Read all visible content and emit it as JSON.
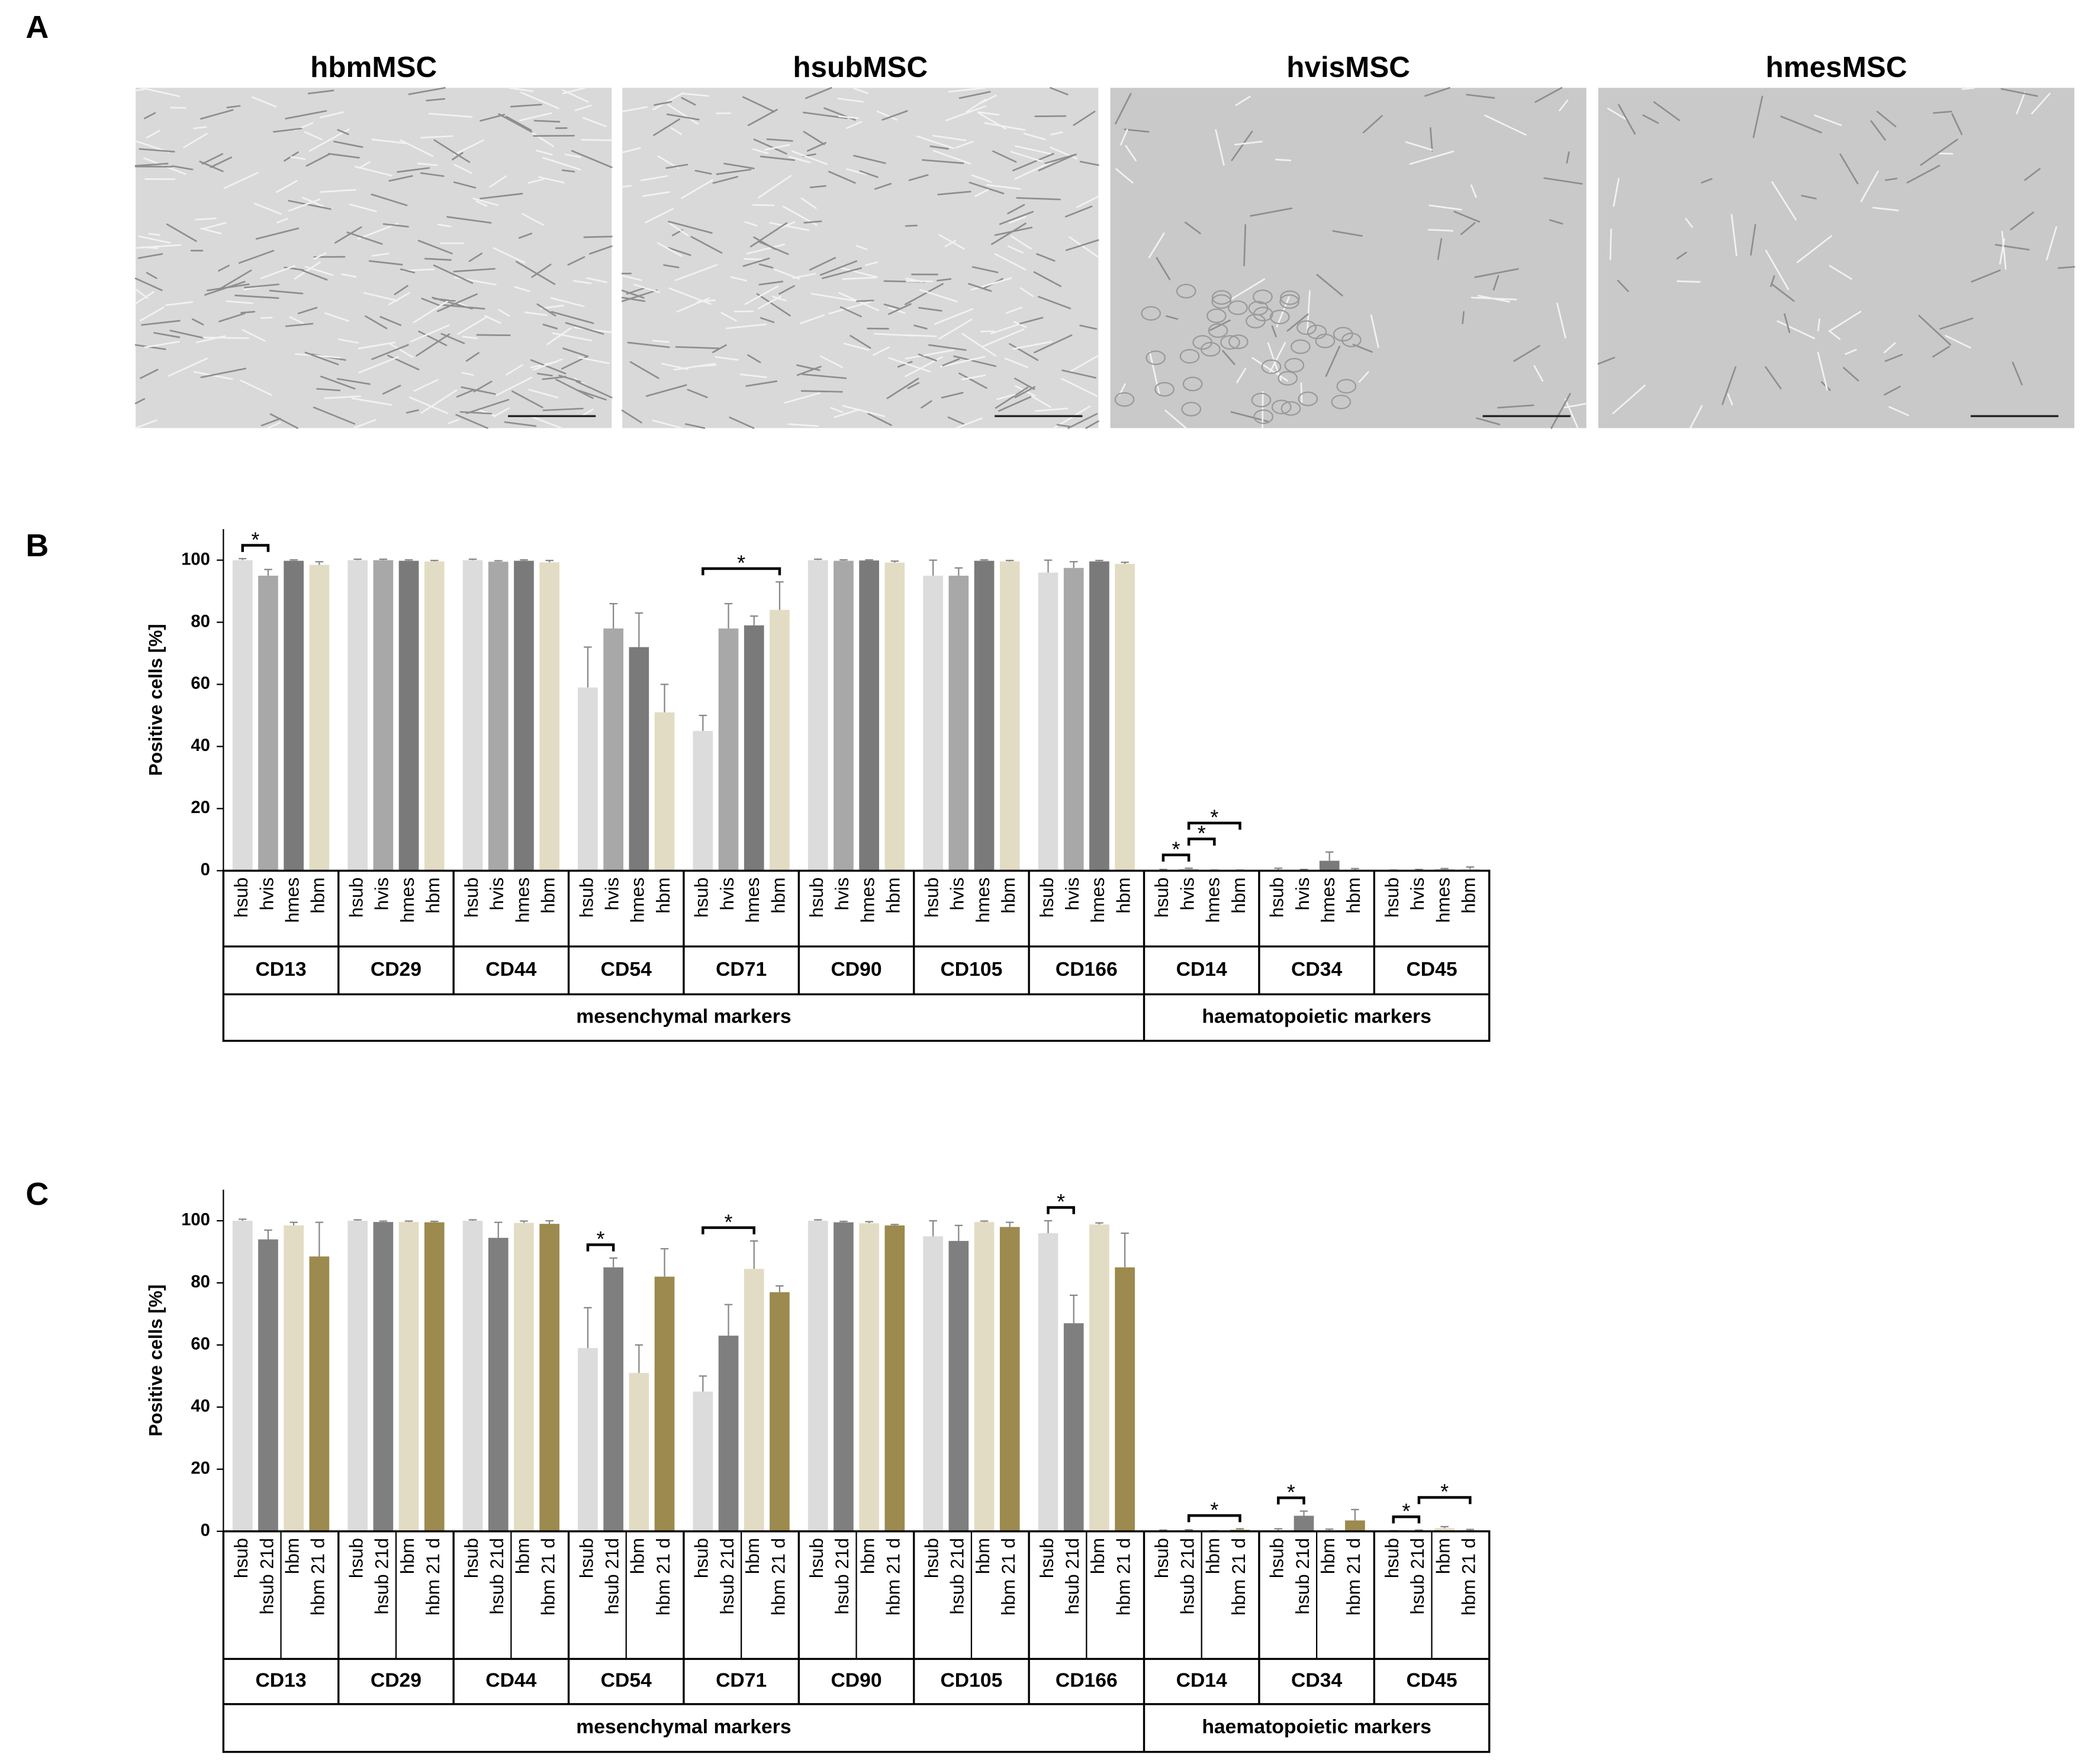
{
  "panel_labels": [
    "A",
    "B",
    "C"
  ],
  "images": [
    "hbmMSC",
    "hsubMSC",
    "hvisMSC",
    "hmesMSC"
  ],
  "chart_data": [
    {
      "type": "bar",
      "y_label": "Positive cells [%]",
      "categories": [
        "CD13",
        "CD29",
        "CD44",
        "CD54",
        "CD71",
        "CD90",
        "CD105",
        "CD166",
        "CD14",
        "CD34",
        "CD45"
      ],
      "groups": [
        {
          "label": "mesenchymal markers",
          "from": "CD13",
          "to": "CD166"
        },
        {
          "label": "haematopoietic markers",
          "from": "CD14",
          "to": "CD45"
        }
      ],
      "ylim": [
        0,
        110
      ],
      "yticks": [
        0,
        20,
        40,
        60,
        80,
        100
      ],
      "series": [
        {
          "name": "hsub",
          "color": "#dcdcdc",
          "values": [
            100,
            100,
            100,
            59,
            45,
            100,
            95,
            96,
            0.2,
            0.3,
            0.1
          ],
          "errors": [
            0.5,
            0.3,
            0.3,
            13,
            5,
            0.3,
            5,
            4,
            0.2,
            0.5,
            0.1
          ]
        },
        {
          "name": "hvis",
          "color": "#a8a8a8",
          "values": [
            95,
            100,
            99.5,
            78,
            78,
            99.8,
            95,
            97.5,
            0.5,
            0.2,
            0.2
          ],
          "errors": [
            2,
            0.3,
            0.3,
            8,
            8,
            0.3,
            2.5,
            2,
            0.3,
            0.2,
            0.2
          ]
        },
        {
          "name": "hmes",
          "color": "#7a7a7a",
          "values": [
            99.8,
            99.8,
            99.8,
            72,
            79,
            99.9,
            99.8,
            99.6,
            0.1,
            3.2,
            0.4
          ],
          "errors": [
            0.3,
            0.3,
            0.3,
            11,
            3,
            0.2,
            0.3,
            0.3,
            0.1,
            2.8,
            0.3
          ]
        },
        {
          "name": "hbm",
          "color": "#e3dcc4",
          "values": [
            98.5,
            99.6,
            99.3,
            51,
            84,
            99.2,
            99.6,
            98.8,
            0.1,
            0.3,
            0.5
          ],
          "errors": [
            1,
            0.3,
            0.6,
            9,
            9,
            0.5,
            0.3,
            0.5,
            0.1,
            0.4,
            0.7
          ]
        }
      ],
      "significance": [
        {
          "category": "CD13",
          "series": [
            "hsub",
            "hvis"
          ],
          "label": "*"
        },
        {
          "category": "CD71",
          "series": [
            "hsub",
            "hbm"
          ],
          "label": "*"
        },
        {
          "category": "CD14",
          "series": [
            "hsub",
            "hvis"
          ],
          "label": "*"
        },
        {
          "category": "CD14",
          "series": [
            "hvis",
            "hmes"
          ],
          "label": "*"
        },
        {
          "category": "CD14",
          "series": [
            "hvis",
            "hbm"
          ],
          "label": "*"
        }
      ]
    },
    {
      "type": "bar",
      "y_label": "Positive cells [%]",
      "categories": [
        "CD13",
        "CD29",
        "CD44",
        "CD54",
        "CD71",
        "CD90",
        "CD105",
        "CD166",
        "CD14",
        "CD34",
        "CD45"
      ],
      "groups": [
        {
          "label": "mesenchymal markers",
          "from": "CD13",
          "to": "CD166"
        },
        {
          "label": "haematopoietic markers",
          "from": "CD14",
          "to": "CD45"
        }
      ],
      "ylim": [
        0,
        110
      ],
      "yticks": [
        0,
        20,
        40,
        60,
        80,
        100
      ],
      "series": [
        {
          "name": "hsub",
          "color": "#dcdcdc",
          "values": [
            100,
            100,
            100,
            59,
            45,
            100,
            95,
            96,
            0.2,
            0.3,
            0.1
          ],
          "errors": [
            0.5,
            0.3,
            0.3,
            13,
            5,
            0.3,
            5,
            4,
            0.2,
            0.5,
            0.1
          ]
        },
        {
          "name": "hsub 21d",
          "color": "#7f7f7f",
          "values": [
            94,
            99.6,
            94.5,
            85,
            63,
            99.5,
            93.5,
            67,
            0.3,
            5,
            0.2
          ],
          "errors": [
            3,
            0.3,
            5,
            3,
            10,
            0.3,
            5,
            9,
            0.2,
            1.5,
            0.2
          ]
        },
        {
          "name": "hbm",
          "color": "#e3dcc4",
          "values": [
            98.5,
            99.6,
            99.3,
            51,
            84.5,
            99.2,
            99.6,
            98.8,
            0.1,
            0.3,
            1
          ],
          "errors": [
            1,
            0.3,
            0.6,
            9,
            9,
            0.5,
            0.3,
            0.5,
            0.1,
            0.4,
            0.5
          ]
        },
        {
          "name": "hbm 21 d",
          "color": "#9c8a4e",
          "values": [
            88.5,
            99.5,
            99,
            82,
            77,
            98.5,
            98,
            85,
            0.5,
            3.5,
            0.3
          ],
          "errors": [
            11,
            0.3,
            1,
            9,
            2,
            0.3,
            1.5,
            11,
            0.3,
            3.5,
            0.3
          ]
        }
      ],
      "significance": [
        {
          "category": "CD54",
          "series": [
            "hsub",
            "hsub 21d"
          ],
          "label": "*"
        },
        {
          "category": "CD71",
          "series": [
            "hsub",
            "hbm"
          ],
          "label": "*"
        },
        {
          "category": "CD166",
          "series": [
            "hsub",
            "hsub 21d"
          ],
          "label": "*"
        },
        {
          "category": "CD14",
          "series": [
            "hsub 21d",
            "hbm 21 d"
          ],
          "label": "*"
        },
        {
          "category": "CD34",
          "series": [
            "hsub",
            "hsub 21d"
          ],
          "label": "*"
        },
        {
          "category": "CD45",
          "series": [
            "hsub",
            "hsub 21d"
          ],
          "label": "*"
        },
        {
          "category": "CD45",
          "series": [
            "hsub 21d",
            "hbm 21 d"
          ],
          "label": "*"
        }
      ]
    }
  ]
}
